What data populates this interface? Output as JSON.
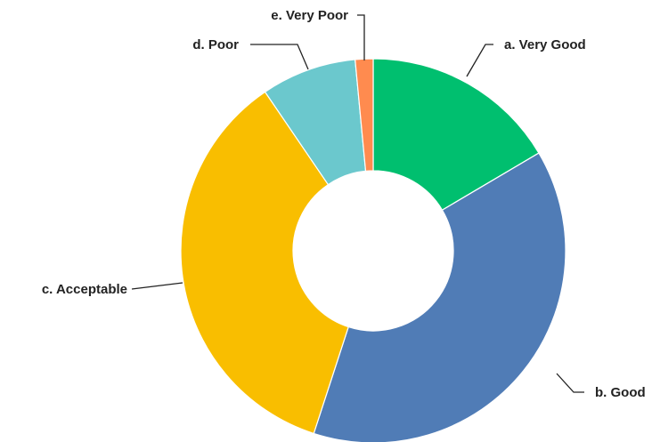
{
  "chart_data": {
    "type": "pie",
    "variant": "donut",
    "title": "",
    "legend": "none",
    "slices": [
      {
        "label": "a. Very Good",
        "value": 16.5,
        "color": "#00BF6F"
      },
      {
        "label": "b. Good",
        "value": 38.5,
        "color": "#507CB6"
      },
      {
        "label": "c. Acceptable",
        "value": 35.5,
        "color": "#F9BE00"
      },
      {
        "label": "d. Poor",
        "value": 8.0,
        "color": "#6BC8CD"
      },
      {
        "label": "e. Very Poor",
        "value": 1.5,
        "color": "#FF8B4F"
      }
    ]
  }
}
